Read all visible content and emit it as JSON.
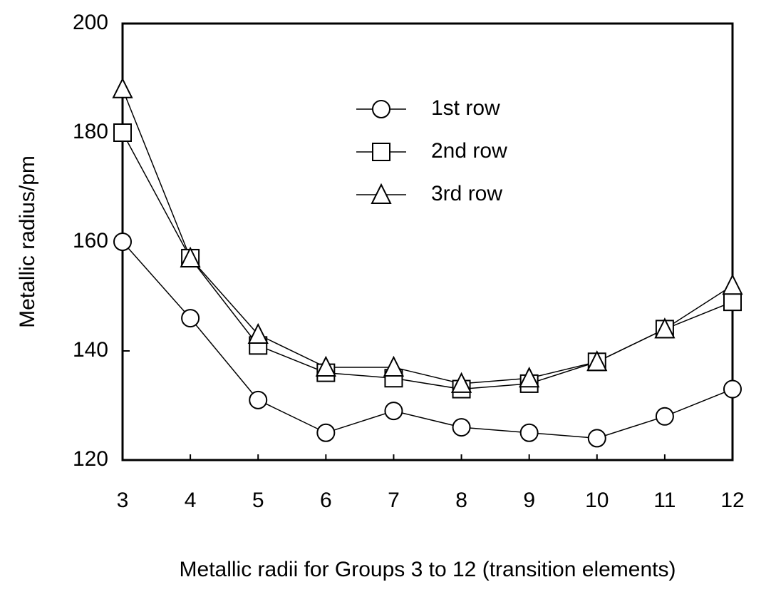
{
  "chart_data": {
    "type": "line",
    "xlabel": "Metallic radii for Groups 3 to 12 (transition elements)",
    "ylabel": "Metallic radius/pm",
    "x": [
      3,
      4,
      5,
      6,
      7,
      8,
      9,
      10,
      11,
      12
    ],
    "series": [
      {
        "name": "1st row",
        "color": "#000000",
        "marker": "circle",
        "values": [
          160,
          146,
          131,
          125,
          129,
          126,
          125,
          124,
          128,
          133
        ]
      },
      {
        "name": "2nd row",
        "color": "#000000",
        "marker": "square",
        "values": [
          180,
          157,
          141,
          136,
          135,
          133,
          134,
          138,
          144,
          149
        ]
      },
      {
        "name": "3rd row",
        "color": "#000000",
        "marker": "triangle",
        "values": [
          188,
          157,
          143,
          137,
          137,
          134,
          135,
          138,
          144,
          152
        ]
      }
    ],
    "xlim": [
      3,
      12
    ],
    "xticks": [
      3,
      4,
      5,
      6,
      7,
      8,
      9,
      10,
      11,
      12
    ],
    "ylim": [
      120,
      200
    ],
    "yticks": [
      120,
      140,
      160,
      180,
      200
    ],
    "legend": "upper center"
  }
}
